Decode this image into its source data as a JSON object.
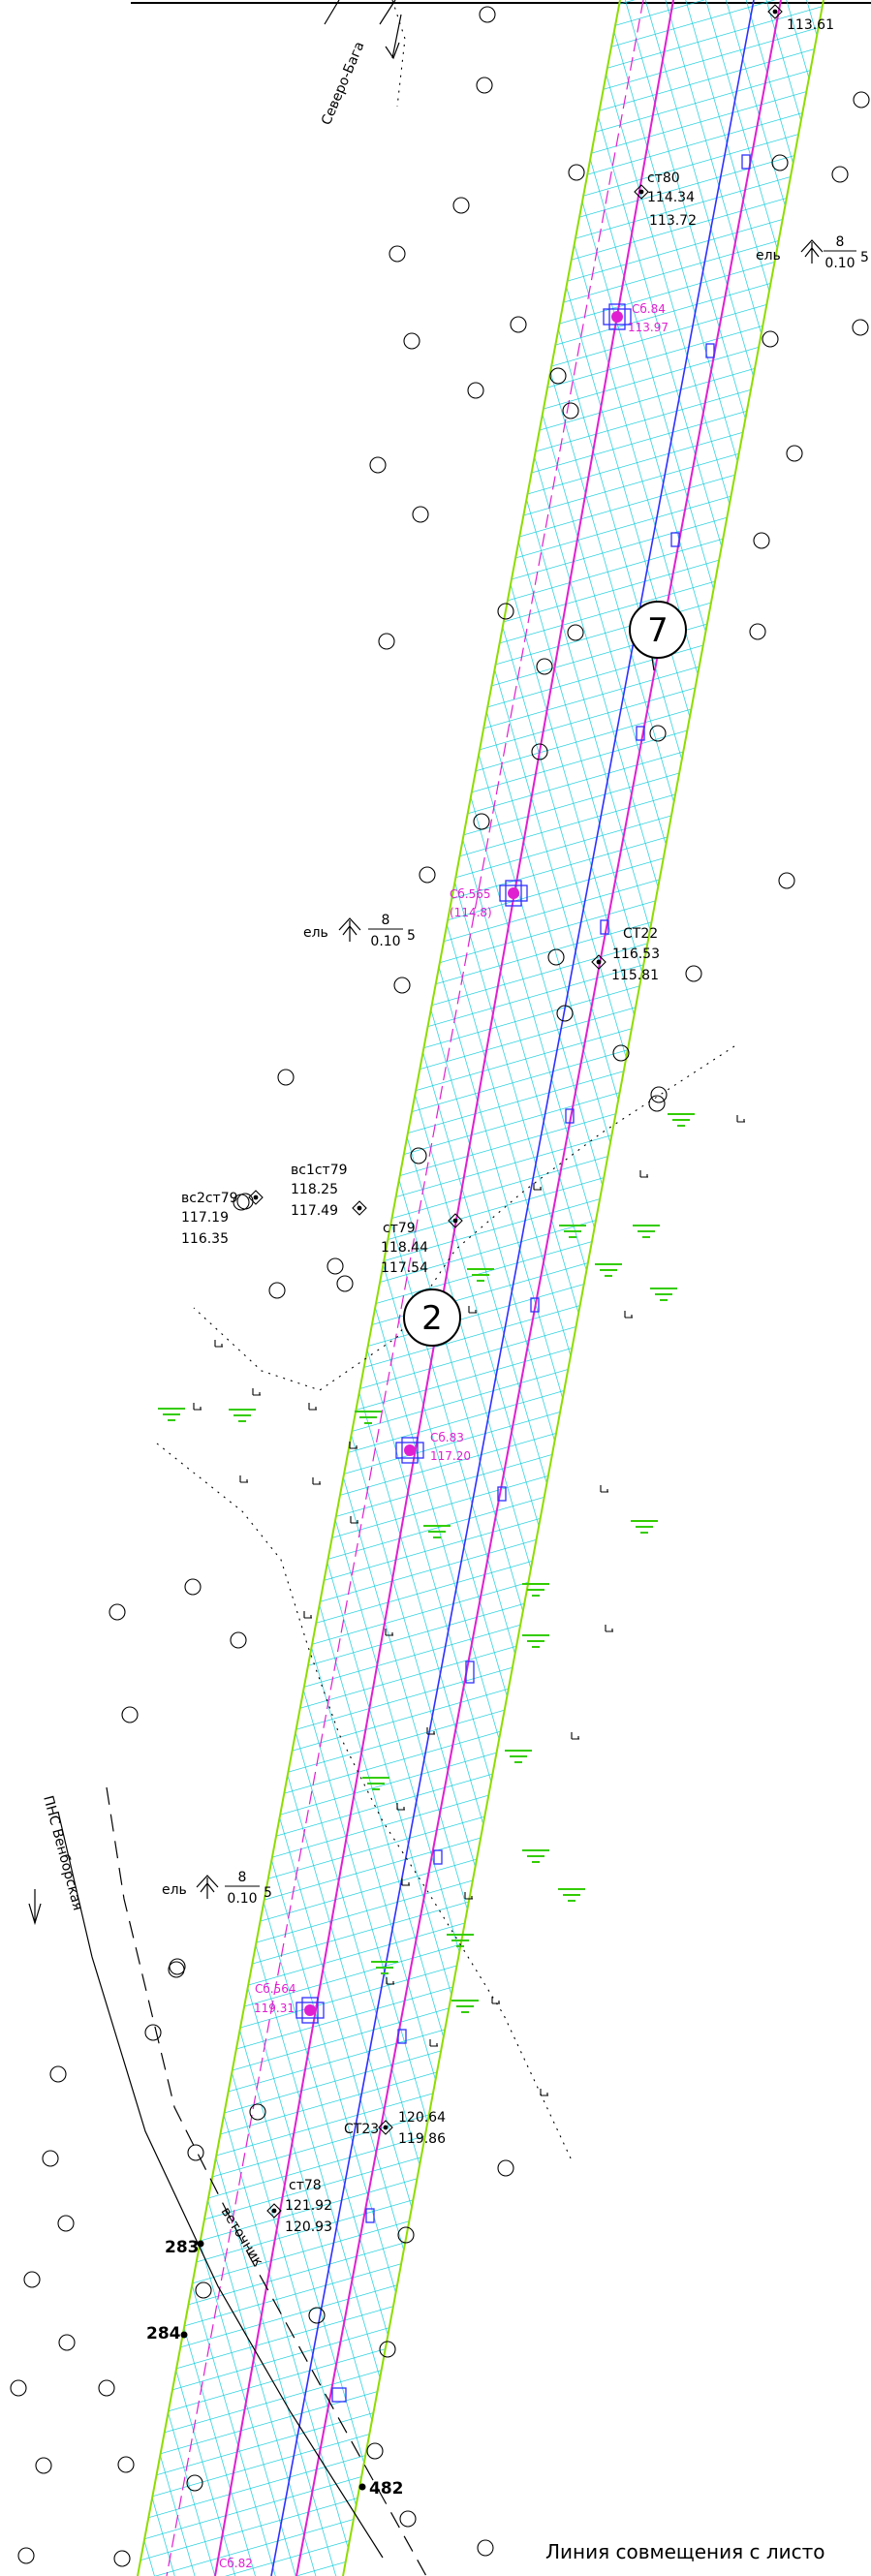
{
  "map": {
    "top_label": "113.61",
    "road_label": "Северо-Бага",
    "pipeline_label": "ПНС Венборская",
    "shrub_label": "веточник",
    "footer": "Линия совмещения с листо",
    "circle_markers": [
      "7",
      "2"
    ],
    "trees": [
      {
        "species": "ель",
        "num": "8",
        "den": "0.10",
        "suffix": "5"
      },
      {
        "species": "ель",
        "num": "8",
        "den": "0.10",
        "suffix": "5"
      },
      {
        "species": "ель",
        "num": "8",
        "den": "0.10",
        "suffix": "5"
      }
    ],
    "stations": [
      {
        "name": "ст80",
        "v1": "114.34",
        "v2": "113.72"
      },
      {
        "name": "СТ22",
        "v1": "116.53",
        "v2": "115.81"
      },
      {
        "name": "вс1ст79",
        "v1": "118.25",
        "v2": "117.49"
      },
      {
        "name": "вс2ст79",
        "v1": "117.19",
        "v2": "116.35"
      },
      {
        "name": "ст79",
        "v1": "118.44",
        "v2": "117.54"
      },
      {
        "name": "СТ23",
        "v1": "120.64",
        "v2": "119.86"
      },
      {
        "name": "ст78",
        "v1": "121.92",
        "v2": "120.93"
      }
    ],
    "wells": [
      {
        "name": "Сб.84",
        "value": "113.97"
      },
      {
        "name": "Сб.565",
        "value": "(114.8)"
      },
      {
        "name": "Сб.83",
        "value": "117.20"
      },
      {
        "name": "Сб.564",
        "value": "119.31"
      },
      {
        "name": "Сб.82",
        "value": ""
      }
    ],
    "points": [
      "283",
      "284",
      "482"
    ],
    "colors": {
      "hatch": "#00c8d8",
      "band_border": "#8fdc00",
      "pipe": "#e020d0",
      "pipe2": "#3030ff",
      "marsh": "#33cc00"
    }
  }
}
